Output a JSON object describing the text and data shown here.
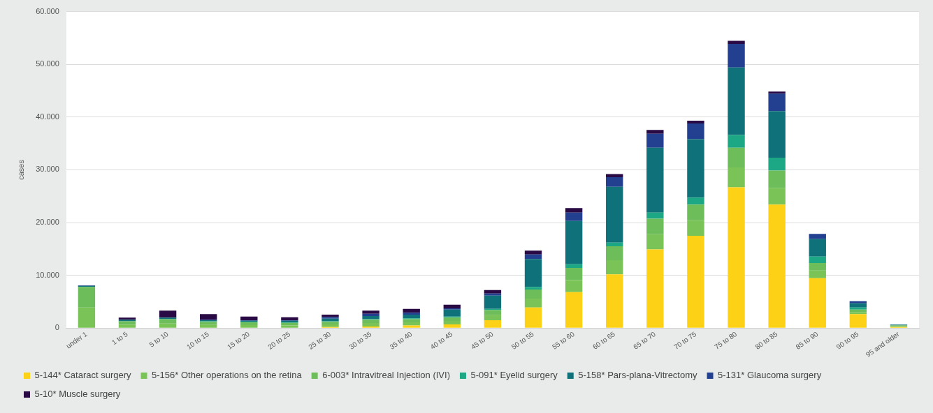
{
  "chart_data": {
    "type": "bar",
    "stacked": true,
    "ylabel": "cases",
    "categories": [
      "under 1",
      "1 to 5",
      "5 to 10",
      "10 to 15",
      "15 to 20",
      "20 to 25",
      "25 to 30",
      "30 to 35",
      "35 to 40",
      "40 to 45",
      "45 to 50",
      "50 to 55",
      "55 to 60",
      "60 to 65",
      "65 to 70",
      "70 to 75",
      "75 to 80",
      "80 to 85",
      "85 to 90",
      "90 to 95",
      "95 and older"
    ],
    "series": [
      {
        "name": "5-144* Cataract surgery",
        "color": "#fcd116",
        "values": [
          0,
          0,
          0,
          0,
          0,
          0,
          200,
          300,
          500,
          700,
          1500,
          3900,
          6800,
          10200,
          14900,
          17500,
          26700,
          23400,
          9450,
          2650,
          200
        ]
      },
      {
        "name": "5-156* Other operations on the retina",
        "color": "#7ac356",
        "values": [
          3900,
          650,
          850,
          600,
          550,
          500,
          500,
          650,
          600,
          650,
          950,
          1700,
          2300,
          2650,
          2900,
          2950,
          3750,
          3200,
          1450,
          400,
          150
        ]
      },
      {
        "name": "6-003* Intravitreal Injection (IVI)",
        "color": "#6dbd5a",
        "values": [
          3900,
          650,
          850,
          600,
          550,
          500,
          500,
          650,
          600,
          650,
          950,
          1700,
          2300,
          2650,
          2950,
          2950,
          3750,
          3250,
          1450,
          450,
          150
        ]
      },
      {
        "name": "5-091* Eyelid surgery",
        "color": "#1ca884",
        "values": [
          0,
          null,
          null,
          100,
          100,
          100,
          100,
          100,
          150,
          200,
          250,
          500,
          700,
          700,
          1150,
          1350,
          2400,
          2450,
          1200,
          400,
          0
        ]
      },
      {
        "name": "5-158* Pars-plana-Vitrectomy",
        "color": "#0f7179",
        "values": [
          200,
          300,
          300,
          200,
          200,
          300,
          500,
          600,
          700,
          1300,
          2500,
          5300,
          8200,
          10600,
          12300,
          11050,
          12800,
          8850,
          3300,
          800,
          150
        ]
      },
      {
        "name": "5-131* Glaucoma surgery",
        "color": "#22408f",
        "values": [
          100,
          null,
          null,
          100,
          100,
          100,
          300,
          400,
          350,
          250,
          400,
          850,
          1600,
          1800,
          2650,
          3000,
          4450,
          3300,
          1000,
          400,
          null
        ]
      },
      {
        "name": "5-10* Muscle surgery",
        "color": "#2a0a45",
        "values": [
          0,
          400,
          1300,
          1050,
          700,
          550,
          450,
          600,
          750,
          700,
          650,
          750,
          850,
          600,
          700,
          500,
          600,
          400,
          0,
          0,
          0
        ]
      }
    ],
    "ylim": [
      0,
      60000
    ],
    "yticks": [
      {
        "value": 0,
        "label": "0"
      },
      {
        "value": 10000,
        "label": "10.000"
      },
      {
        "value": 20000,
        "label": "20.000"
      },
      {
        "value": 30000,
        "label": "30.000"
      },
      {
        "value": 40000,
        "label": "40.000"
      },
      {
        "value": 50000,
        "label": "50.000"
      },
      {
        "value": 60000,
        "label": "60.000"
      }
    ],
    "grid": "y",
    "legend": "bottom"
  }
}
